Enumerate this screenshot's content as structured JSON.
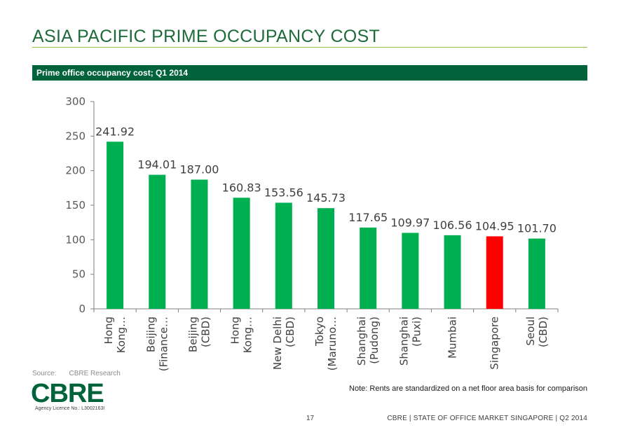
{
  "header": {
    "title": "ASIA PACIFIC PRIME OCCUPANCY COST",
    "subtitle": "Prime office occupancy cost; Q1 2014"
  },
  "chart_data": {
    "type": "bar",
    "categories": [
      [
        "Hong",
        "Kong…"
      ],
      [
        "Beijing",
        "(Finance…"
      ],
      [
        "Beijing",
        "(CBD)"
      ],
      [
        "Hong",
        "Kong…"
      ],
      [
        "New Delhi",
        "(CBD)"
      ],
      [
        "Tokyo",
        "(Maruno…"
      ],
      [
        "Shanghai",
        "(Pudong)"
      ],
      [
        "Shanghai",
        "(Puxi)"
      ],
      [
        "Mumbai"
      ],
      [
        "Singapore"
      ],
      [
        "Seoul",
        "(CBD)"
      ]
    ],
    "values": [
      241.92,
      194.01,
      187.0,
      160.83,
      153.56,
      145.73,
      117.65,
      109.97,
      106.56,
      104.95,
      101.7
    ],
    "data_labels": [
      "241.92",
      "194.01",
      "187.00",
      "160.83",
      "153.56",
      "145.73",
      "117.65",
      "109.97",
      "106.56",
      "104.95",
      "101.70"
    ],
    "highlight_index": 9,
    "ylim": [
      0,
      300
    ],
    "yticks": [
      0,
      50,
      100,
      150,
      200,
      250,
      300
    ],
    "colors": {
      "bar": "#00b050",
      "highlight": "#ff0000",
      "axis": "#7f7f7f"
    },
    "grid": false,
    "legend": "none"
  },
  "source": {
    "label": "Source:",
    "value": "CBRE Research"
  },
  "brand": {
    "logo": "CBRE",
    "licence": "Agency Licence No.: L3002163I"
  },
  "note": "Note: Rents are standardized on a net floor area basis for comparison",
  "footer": {
    "page": "17",
    "text": "CBRE  |  STATE OF OFFICE MARKET SINGAPORE  |  Q2 2014"
  }
}
